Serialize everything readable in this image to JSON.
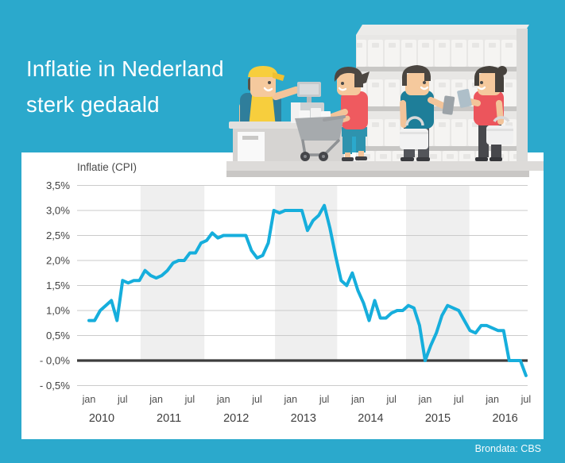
{
  "title": {
    "line1": "Inflatie in Nederland",
    "line2": "sterk gedaald"
  },
  "footer": {
    "source_label": "Brondata: CBS"
  },
  "colors": {
    "background_teal": "#2BA9CC",
    "panel_white": "#FFFFFF",
    "line_cyan": "#16AEDC",
    "gridline_gray": "#CBCBCB",
    "zero_line_dark": "#3D3D3D",
    "year_band_gray": "#EFEFEF",
    "axis_text": "#424242"
  },
  "illustration": {
    "name": "supermarket-scene-illustration",
    "elements": [
      "cashier",
      "cash-register",
      "checkout-counter",
      "shopping-cart-with-groceries",
      "female-shopper-at-cart",
      "store-shelves-with-boxes",
      "male-shopper-with-basket",
      "female-shopper-with-basket",
      "store-floor"
    ]
  },
  "chart_data": {
    "type": "line",
    "title": "Inflatie (CPI)",
    "series": [
      {
        "name": "Inflatie (CPI)",
        "values": [
          0.8,
          0.8,
          1.0,
          1.1,
          1.2,
          0.8,
          1.6,
          1.55,
          1.6,
          1.6,
          1.8,
          1.7,
          1.65,
          1.7,
          1.8,
          1.95,
          2.0,
          2.0,
          2.15,
          2.15,
          2.35,
          2.4,
          2.55,
          2.45,
          2.5,
          2.5,
          2.5,
          2.5,
          2.5,
          2.2,
          2.05,
          2.1,
          2.35,
          3.0,
          2.95,
          3.0,
          3.0,
          3.0,
          3.0,
          2.6,
          2.8,
          2.9,
          3.1,
          2.65,
          2.1,
          1.6,
          1.5,
          1.75,
          1.4,
          1.15,
          0.8,
          1.2,
          0.85,
          0.85,
          0.95,
          1.0,
          1.0,
          1.1,
          1.05,
          0.7,
          0.0,
          0.3,
          0.55,
          0.9,
          1.1,
          1.05,
          1.0,
          0.8,
          0.6,
          0.55,
          0.7,
          0.7,
          0.65,
          0.6,
          0.6,
          0.0,
          0.0,
          0.0,
          -0.3
        ]
      }
    ],
    "x_start": "2010-01",
    "x_end": "2016-07",
    "x_unit": "month",
    "x_ticks": {
      "month_labels": [
        "jan",
        "jul"
      ],
      "years": [
        "2010",
        "2011",
        "2012",
        "2013",
        "2014",
        "2015",
        "2016"
      ]
    },
    "y_ticks": [
      {
        "label": "3,5%",
        "value": 3.5
      },
      {
        "label": "3,0%",
        "value": 3.0
      },
      {
        "label": "2,5%",
        "value": 2.5
      },
      {
        "label": "2,0%",
        "value": 2.0
      },
      {
        "label": "1,5%",
        "value": 1.5
      },
      {
        "label": "1,0%",
        "value": 1.0
      },
      {
        "label": "0,5%",
        "value": 0.5
      },
      {
        "label": "- 0,0%",
        "value": 0.0
      },
      {
        "label": "- 0,5%",
        "value": -0.5
      }
    ],
    "ylim": [
      -0.5,
      3.5
    ],
    "grid": true,
    "zero_line": true,
    "legend": "none",
    "shaded_bands_month_ranges": [
      [
        9.2,
        20.6
      ],
      [
        33.2,
        44.3
      ],
      [
        56.6,
        67.9
      ]
    ],
    "line_color": "#16AEDC"
  }
}
